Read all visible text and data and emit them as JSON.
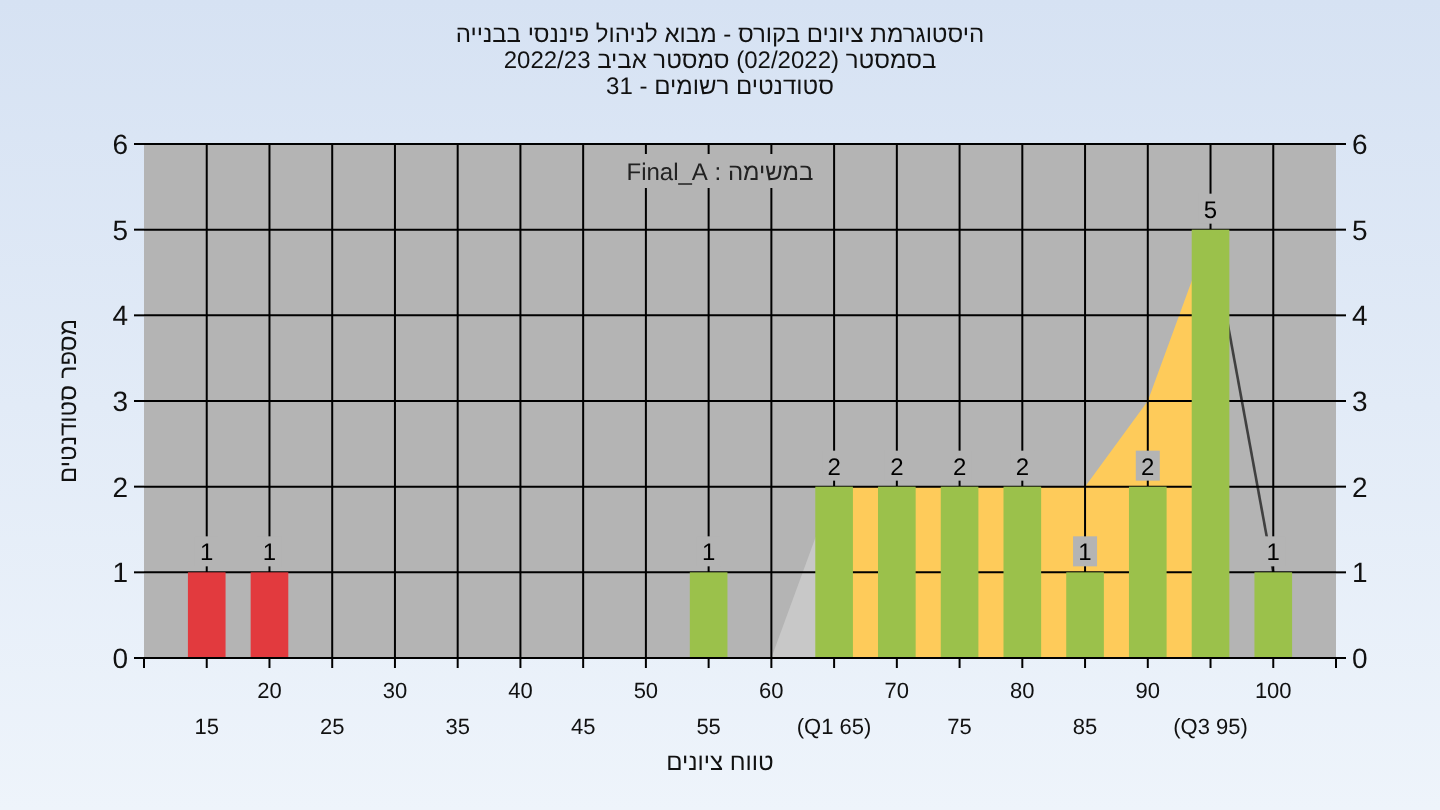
{
  "chart_data": {
    "type": "bar",
    "title": "היסטוגרמת ציונים בקורס - מבוא לניהול פיננסי בבנייה",
    "subtitle": "בסמסטר  (02/2022)  סמסטר אביב 2022/23\nסטודנטים רשומים - 31",
    "xlabel": "טווח ציונים",
    "ylabel": "מספר סטודנטים",
    "annotations": [
      "במשימה : Final_A"
    ],
    "categories": [
      "15",
      "20",
      "25",
      "30",
      "35",
      "40",
      "45",
      "50",
      "55",
      "60",
      "(Q1 65)",
      "70",
      "75",
      "80",
      "85",
      "90",
      "(Q3 95)",
      "100"
    ],
    "series": [
      {
        "type": "area",
        "color": "#c8c8c8",
        "values": [
          null,
          null,
          null,
          null,
          null,
          null,
          null,
          null,
          null,
          0,
          2,
          null,
          null,
          null,
          null,
          null,
          null,
          null
        ]
      },
      {
        "type": "area",
        "color": "#fecb5a",
        "values": [
          null,
          null,
          null,
          null,
          null,
          null,
          null,
          null,
          null,
          null,
          2,
          2,
          2,
          2,
          2,
          3,
          5,
          null
        ]
      },
      {
        "type": "line",
        "color": "#404040",
        "values": [
          null,
          null,
          null,
          null,
          null,
          null,
          null,
          null,
          null,
          null,
          null,
          null,
          null,
          null,
          null,
          null,
          5,
          1
        ]
      },
      {
        "type": "bar",
        "colors": [
          "#e23a3e",
          "#e23a3e",
          "#9bc14b",
          "#9bc14b",
          "#9bc14b",
          "#9bc14b",
          "#9bc14b",
          "#9bc14b",
          "#9bc14b",
          "#9bc14b",
          "#9bc14b",
          "#9bc14b",
          "#9bc14b",
          "#9bc14b",
          "#9bc14b",
          "#9bc14b",
          "#9bc14b",
          "#9bc14b"
        ],
        "values": [
          1,
          1,
          0,
          0,
          0,
          0,
          0,
          0,
          1,
          0,
          2,
          2,
          2,
          2,
          1,
          2,
          5,
          1
        ],
        "value_labels": [
          "1",
          "1",
          null,
          null,
          null,
          null,
          null,
          null,
          "1",
          null,
          "2",
          "2",
          "2",
          "2",
          "1",
          "2",
          "5",
          "1"
        ]
      }
    ],
    "ylim": [
      0,
      6
    ],
    "yticks": [
      0,
      1,
      2,
      3,
      4,
      5,
      6
    ],
    "y2lim": [
      0,
      6
    ],
    "y2ticks": [
      0,
      1,
      2,
      3,
      4,
      5,
      6
    ],
    "grid": true
  }
}
